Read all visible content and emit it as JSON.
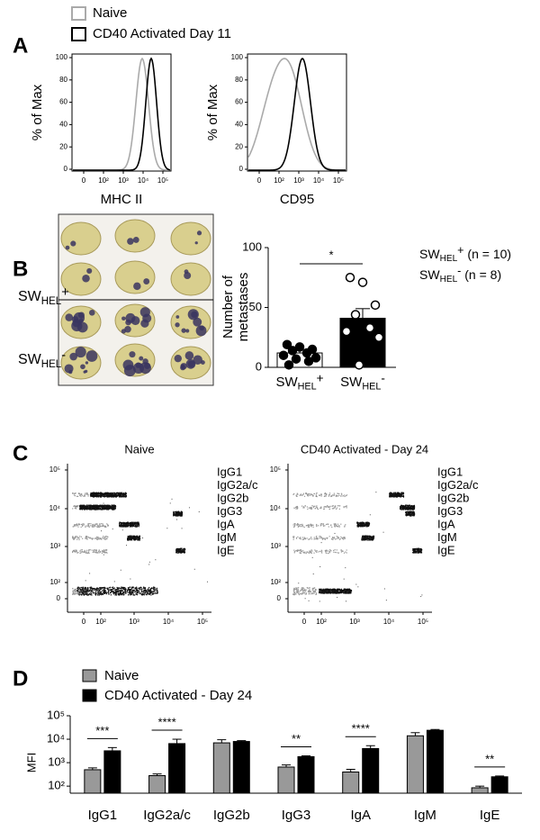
{
  "panel_letters": [
    "A",
    "B",
    "C",
    "D"
  ],
  "panel_a": {
    "legend": [
      "Naive",
      "CD40 Activated Day 11"
    ],
    "y_label": "% of Max",
    "yticks": [
      0,
      20,
      40,
      60,
      80,
      100
    ],
    "xticks": [
      "0",
      "10²",
      "10³",
      "10⁴",
      "10⁵"
    ],
    "plots": [
      {
        "x_label": "MHC II"
      },
      {
        "x_label": "CD95"
      }
    ]
  },
  "panel_b": {
    "row_labels": [
      {
        "base": "SW",
        "sub": "HEL",
        "sup": "+"
      },
      {
        "base": "SW",
        "sub": "HEL",
        "sup": "-"
      }
    ],
    "legend": [
      {
        "base": "SW",
        "sub": "HEL",
        "sup": "+",
        "n": "(n = 10)"
      },
      {
        "base": "SW",
        "sub": "HEL",
        "sup": "-",
        "n": "(n = 8)"
      }
    ]
  },
  "panel_c": {
    "plots": [
      {
        "title": "Naive"
      },
      {
        "title": "CD40 Activated - Day 24"
      }
    ],
    "yticks": [
      "10⁵",
      "10⁴",
      "10³",
      "10²",
      "0"
    ],
    "xticks": [
      "0",
      "10²",
      "10³",
      "10⁴",
      "10⁵"
    ],
    "rows": [
      "IgG1",
      "IgG2a/c",
      "IgG2b",
      "IgG3",
      "IgA",
      "IgM",
      "IgE"
    ]
  },
  "chart_data": [
    {
      "type": "bar",
      "y_label": [
        "Number of",
        "metastases"
      ],
      "categories": [
        {
          "base": "SW",
          "sub": "HEL",
          "sup": "+"
        },
        {
          "base": "SW",
          "sub": "HEL",
          "sup": "-"
        }
      ],
      "values": [
        12,
        41
      ],
      "errors": [
        2.5,
        8
      ],
      "points": [
        [
          19,
          17,
          15,
          14,
          12,
          10,
          8,
          7,
          5,
          2
        ],
        [
          75,
          71,
          52,
          44,
          33,
          30,
          25,
          2
        ]
      ],
      "colors": [
        "#ffffff",
        "#000000"
      ],
      "ylim": [
        0,
        100
      ],
      "yticks": [
        0,
        50,
        100
      ],
      "annotation": "*"
    },
    {
      "type": "bar",
      "log_y": true,
      "y_label": "MFI",
      "categories": [
        "IgG1",
        "IgG2a/c",
        "IgG2b",
        "IgG3",
        "IgA",
        "IgM",
        "IgE"
      ],
      "series": [
        {
          "name": "Naive",
          "color": "#999999",
          "values": [
            500,
            280,
            7000,
            650,
            400,
            14000,
            85
          ],
          "errors": [
            100,
            50,
            2500,
            150,
            120,
            5000,
            15
          ]
        },
        {
          "name": "CD40 Activated - Day 24",
          "color": "#000000",
          "values": [
            3200,
            6500,
            8000,
            1800,
            4000,
            24000,
            250
          ],
          "errors": [
            1200,
            3500,
            700,
            150,
            1300,
            2000,
            20
          ]
        }
      ],
      "ylim": [
        50,
        100000
      ],
      "yticks": [
        {
          "value": 100,
          "label": "10²"
        },
        {
          "value": 1000,
          "label": "10³"
        },
        {
          "value": 10000,
          "label": "10⁴"
        },
        {
          "value": 100000,
          "label": "10⁵"
        }
      ],
      "annotations": [
        {
          "category": "IgG1",
          "text": "***"
        },
        {
          "category": "IgG2a/c",
          "text": "****"
        },
        {
          "category": "IgG3",
          "text": "**"
        },
        {
          "category": "IgA",
          "text": "****"
        },
        {
          "category": "IgE",
          "text": "**"
        }
      ]
    }
  ]
}
